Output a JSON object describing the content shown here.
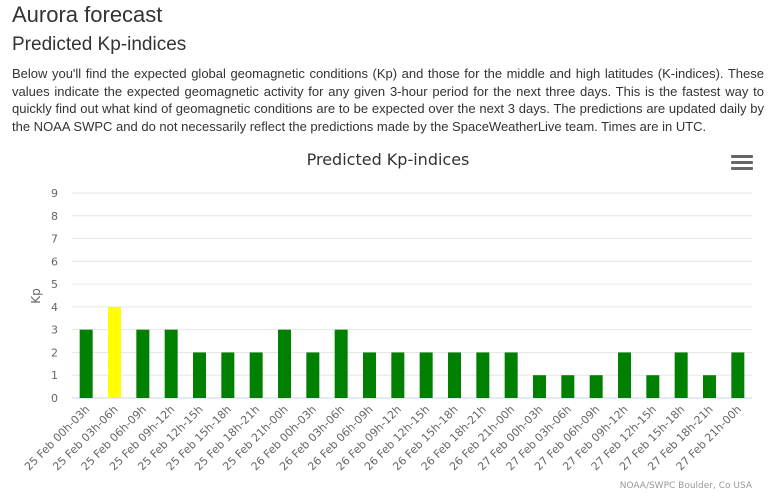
{
  "page": {
    "title": "Aurora forecast",
    "subtitle": "Predicted Kp-indices",
    "description": "Below you'll find the expected global geomagnetic conditions (Kp) and those for the middle and high latitudes (K-indices). These values indicate the expected geomagnetic activity for any given 3-hour period for the next three days. This is the fastest way to quickly find out what kind of geomagnetic conditions are to be expected over the next 3 days. The predictions are updated daily by the NOAA SWPC and do not necessarily reflect the predictions made by the SpaceWeatherLive team. Times are in UTC."
  },
  "menu": {
    "icon": "hamburger-menu-icon"
  },
  "colors": {
    "green": "#008000",
    "yellow": "#ffff00"
  },
  "chart_data": {
    "type": "bar",
    "title": "Predicted Kp-indices",
    "ylabel": "Kp",
    "ylim": [
      0,
      9
    ],
    "yticks": [
      0,
      1,
      2,
      3,
      4,
      5,
      6,
      7,
      8,
      9
    ],
    "grid": true,
    "credit": "NOAA/SWPC Boulder, Co USA",
    "categories": [
      "25 Feb 00h-03h",
      "25 Feb 03h-06h",
      "25 Feb 06h-09h",
      "25 Feb 09h-12h",
      "25 Feb 12h-15h",
      "25 Feb 15h-18h",
      "25 Feb 18h-21h",
      "25 Feb 21h-00h",
      "26 Feb 00h-03h",
      "26 Feb 03h-06h",
      "26 Feb 06h-09h",
      "26 Feb 09h-12h",
      "26 Feb 12h-15h",
      "26 Feb 15h-18h",
      "26 Feb 18h-21h",
      "26 Feb 21h-00h",
      "27 Feb 00h-03h",
      "27 Feb 03h-06h",
      "27 Feb 06h-09h",
      "27 Feb 09h-12h",
      "27 Feb 12h-15h",
      "27 Feb 15h-18h",
      "27 Feb 18h-21h",
      "27 Feb 21h-00h"
    ],
    "values": [
      3,
      4,
      3,
      3,
      2,
      2,
      2,
      3,
      2,
      3,
      2,
      2,
      2,
      2,
      2,
      2,
      1,
      1,
      1,
      2,
      1,
      2,
      1,
      2
    ],
    "bar_colors": [
      "#008000",
      "#ffff00",
      "#008000",
      "#008000",
      "#008000",
      "#008000",
      "#008000",
      "#008000",
      "#008000",
      "#008000",
      "#008000",
      "#008000",
      "#008000",
      "#008000",
      "#008000",
      "#008000",
      "#008000",
      "#008000",
      "#008000",
      "#008000",
      "#008000",
      "#008000",
      "#008000",
      "#008000"
    ]
  }
}
